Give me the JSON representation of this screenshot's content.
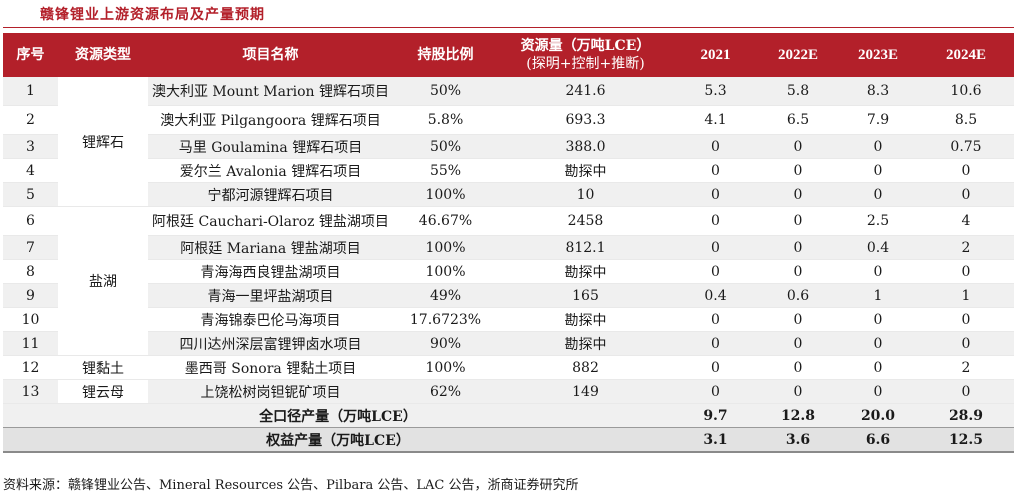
{
  "title": "赣锋锂业上游资源布局及产量预期",
  "headers": {
    "seq": "序号",
    "type": "资源类型",
    "project": "项目名称",
    "share": "持股比例",
    "resource_line1": "资源量（万吨LCE）",
    "resource_line2": "(探明+控制+推断)",
    "y2021": "2021",
    "y2022": "2022E",
    "y2023": "2023E",
    "y2024": "2024E"
  },
  "groups": {
    "spodumene": "锂辉石",
    "brine": "盐湖",
    "clay": "锂黏土",
    "lepidolite": "锂云母"
  },
  "rows": [
    {
      "seq": "1",
      "project": "澳大利亚 Mount Marion 锂辉石项目",
      "share": "50%",
      "resource": "241.6",
      "y2021": "5.3",
      "y2022": "5.8",
      "y2023": "8.3",
      "y2024": "10.6"
    },
    {
      "seq": "2",
      "project": "澳大利亚 Pilgangoora 锂辉石项目",
      "share": "5.8%",
      "resource": "693.3",
      "y2021": "4.1",
      "y2022": "6.5",
      "y2023": "7.9",
      "y2024": "8.5"
    },
    {
      "seq": "3",
      "project": "马里 Goulamina 锂辉石项目",
      "share": "50%",
      "resource": "388.0",
      "y2021": "0",
      "y2022": "0",
      "y2023": "0",
      "y2024": "0.75"
    },
    {
      "seq": "4",
      "project": "爱尔兰 Avalonia 锂辉石项目",
      "share": "55%",
      "resource": "勘探中",
      "y2021": "0",
      "y2022": "0",
      "y2023": "0",
      "y2024": "0"
    },
    {
      "seq": "5",
      "project": "宁都河源锂辉石项目",
      "share": "100%",
      "resource": "10",
      "y2021": "0",
      "y2022": "0",
      "y2023": "0",
      "y2024": "0"
    },
    {
      "seq": "6",
      "project": "阿根廷 Cauchari-Olaroz 锂盐湖项目",
      "share": "46.67%",
      "resource": "2458",
      "y2021": "0",
      "y2022": "0",
      "y2023": "2.5",
      "y2024": "4"
    },
    {
      "seq": "7",
      "project": "阿根廷 Mariana 锂盐湖项目",
      "share": "100%",
      "resource": "812.1",
      "y2021": "0",
      "y2022": "0",
      "y2023": "0.4",
      "y2024": "2"
    },
    {
      "seq": "8",
      "project": "青海海西良锂盐湖项目",
      "share": "100%",
      "resource": "勘探中",
      "y2021": "0",
      "y2022": "0",
      "y2023": "0",
      "y2024": "0"
    },
    {
      "seq": "9",
      "project": "青海一里坪盐湖项目",
      "share": "49%",
      "resource": "165",
      "y2021": "0.4",
      "y2022": "0.6",
      "y2023": "1",
      "y2024": "1"
    },
    {
      "seq": "10",
      "project": "青海锦泰巴伦马海项目",
      "share": "17.6723%",
      "resource": "勘探中",
      "y2021": "0",
      "y2022": "0",
      "y2023": "0",
      "y2024": "0"
    },
    {
      "seq": "11",
      "project": "四川达州深层富锂钾卤水项目",
      "share": "90%",
      "resource": "勘探中",
      "y2021": "0",
      "y2022": "0",
      "y2023": "0",
      "y2024": "0"
    },
    {
      "seq": "12",
      "project": "墨西哥 Sonora 锂黏土项目",
      "share": "100%",
      "resource": "882",
      "y2021": "0",
      "y2022": "0",
      "y2023": "0",
      "y2024": "2"
    },
    {
      "seq": "13",
      "project": "上饶松树岗钽铌矿项目",
      "share": "62%",
      "resource": "149",
      "y2021": "0",
      "y2022": "0",
      "y2023": "0",
      "y2024": "0"
    }
  ],
  "totals": [
    {
      "label": "全口径产量（万吨LCE）",
      "y2021": "9.7",
      "y2022": "12.8",
      "y2023": "20.0",
      "y2024": "28.9"
    },
    {
      "label": "权益产量（万吨LCE）",
      "y2021": "3.1",
      "y2022": "3.6",
      "y2023": "6.6",
      "y2024": "12.5"
    }
  ],
  "source": "资料来源：赣锋锂业公告、Mineral Resources 公告、Pilbara 公告、LAC 公告，浙商证券研究所",
  "colors": {
    "accent": "#b3202a",
    "row_alt": "#f0f0f0"
  }
}
